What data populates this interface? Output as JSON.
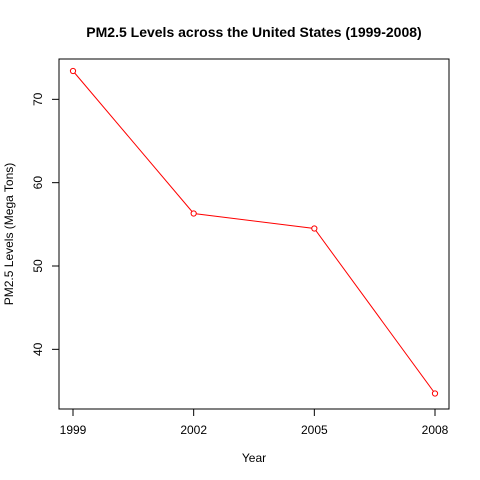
{
  "chart_data": {
    "type": "line",
    "title": "PM2.5 Levels across the United States (1999-2008)",
    "xlabel": "Year",
    "ylabel": "PM2.5 Levels (Mega Tons)",
    "x": [
      1999,
      2002,
      2005,
      2008
    ],
    "xticks": [
      "1999",
      "2002",
      "2005",
      "2008"
    ],
    "yticks": [
      "40",
      "50",
      "60",
      "70"
    ],
    "xlim": [
      1999,
      2008
    ],
    "ylim": [
      34.7,
      73.4
    ],
    "grid": false,
    "series": [
      {
        "color": "#ff0000",
        "values": [
          73.4,
          56.3,
          54.5,
          34.7
        ]
      }
    ]
  }
}
